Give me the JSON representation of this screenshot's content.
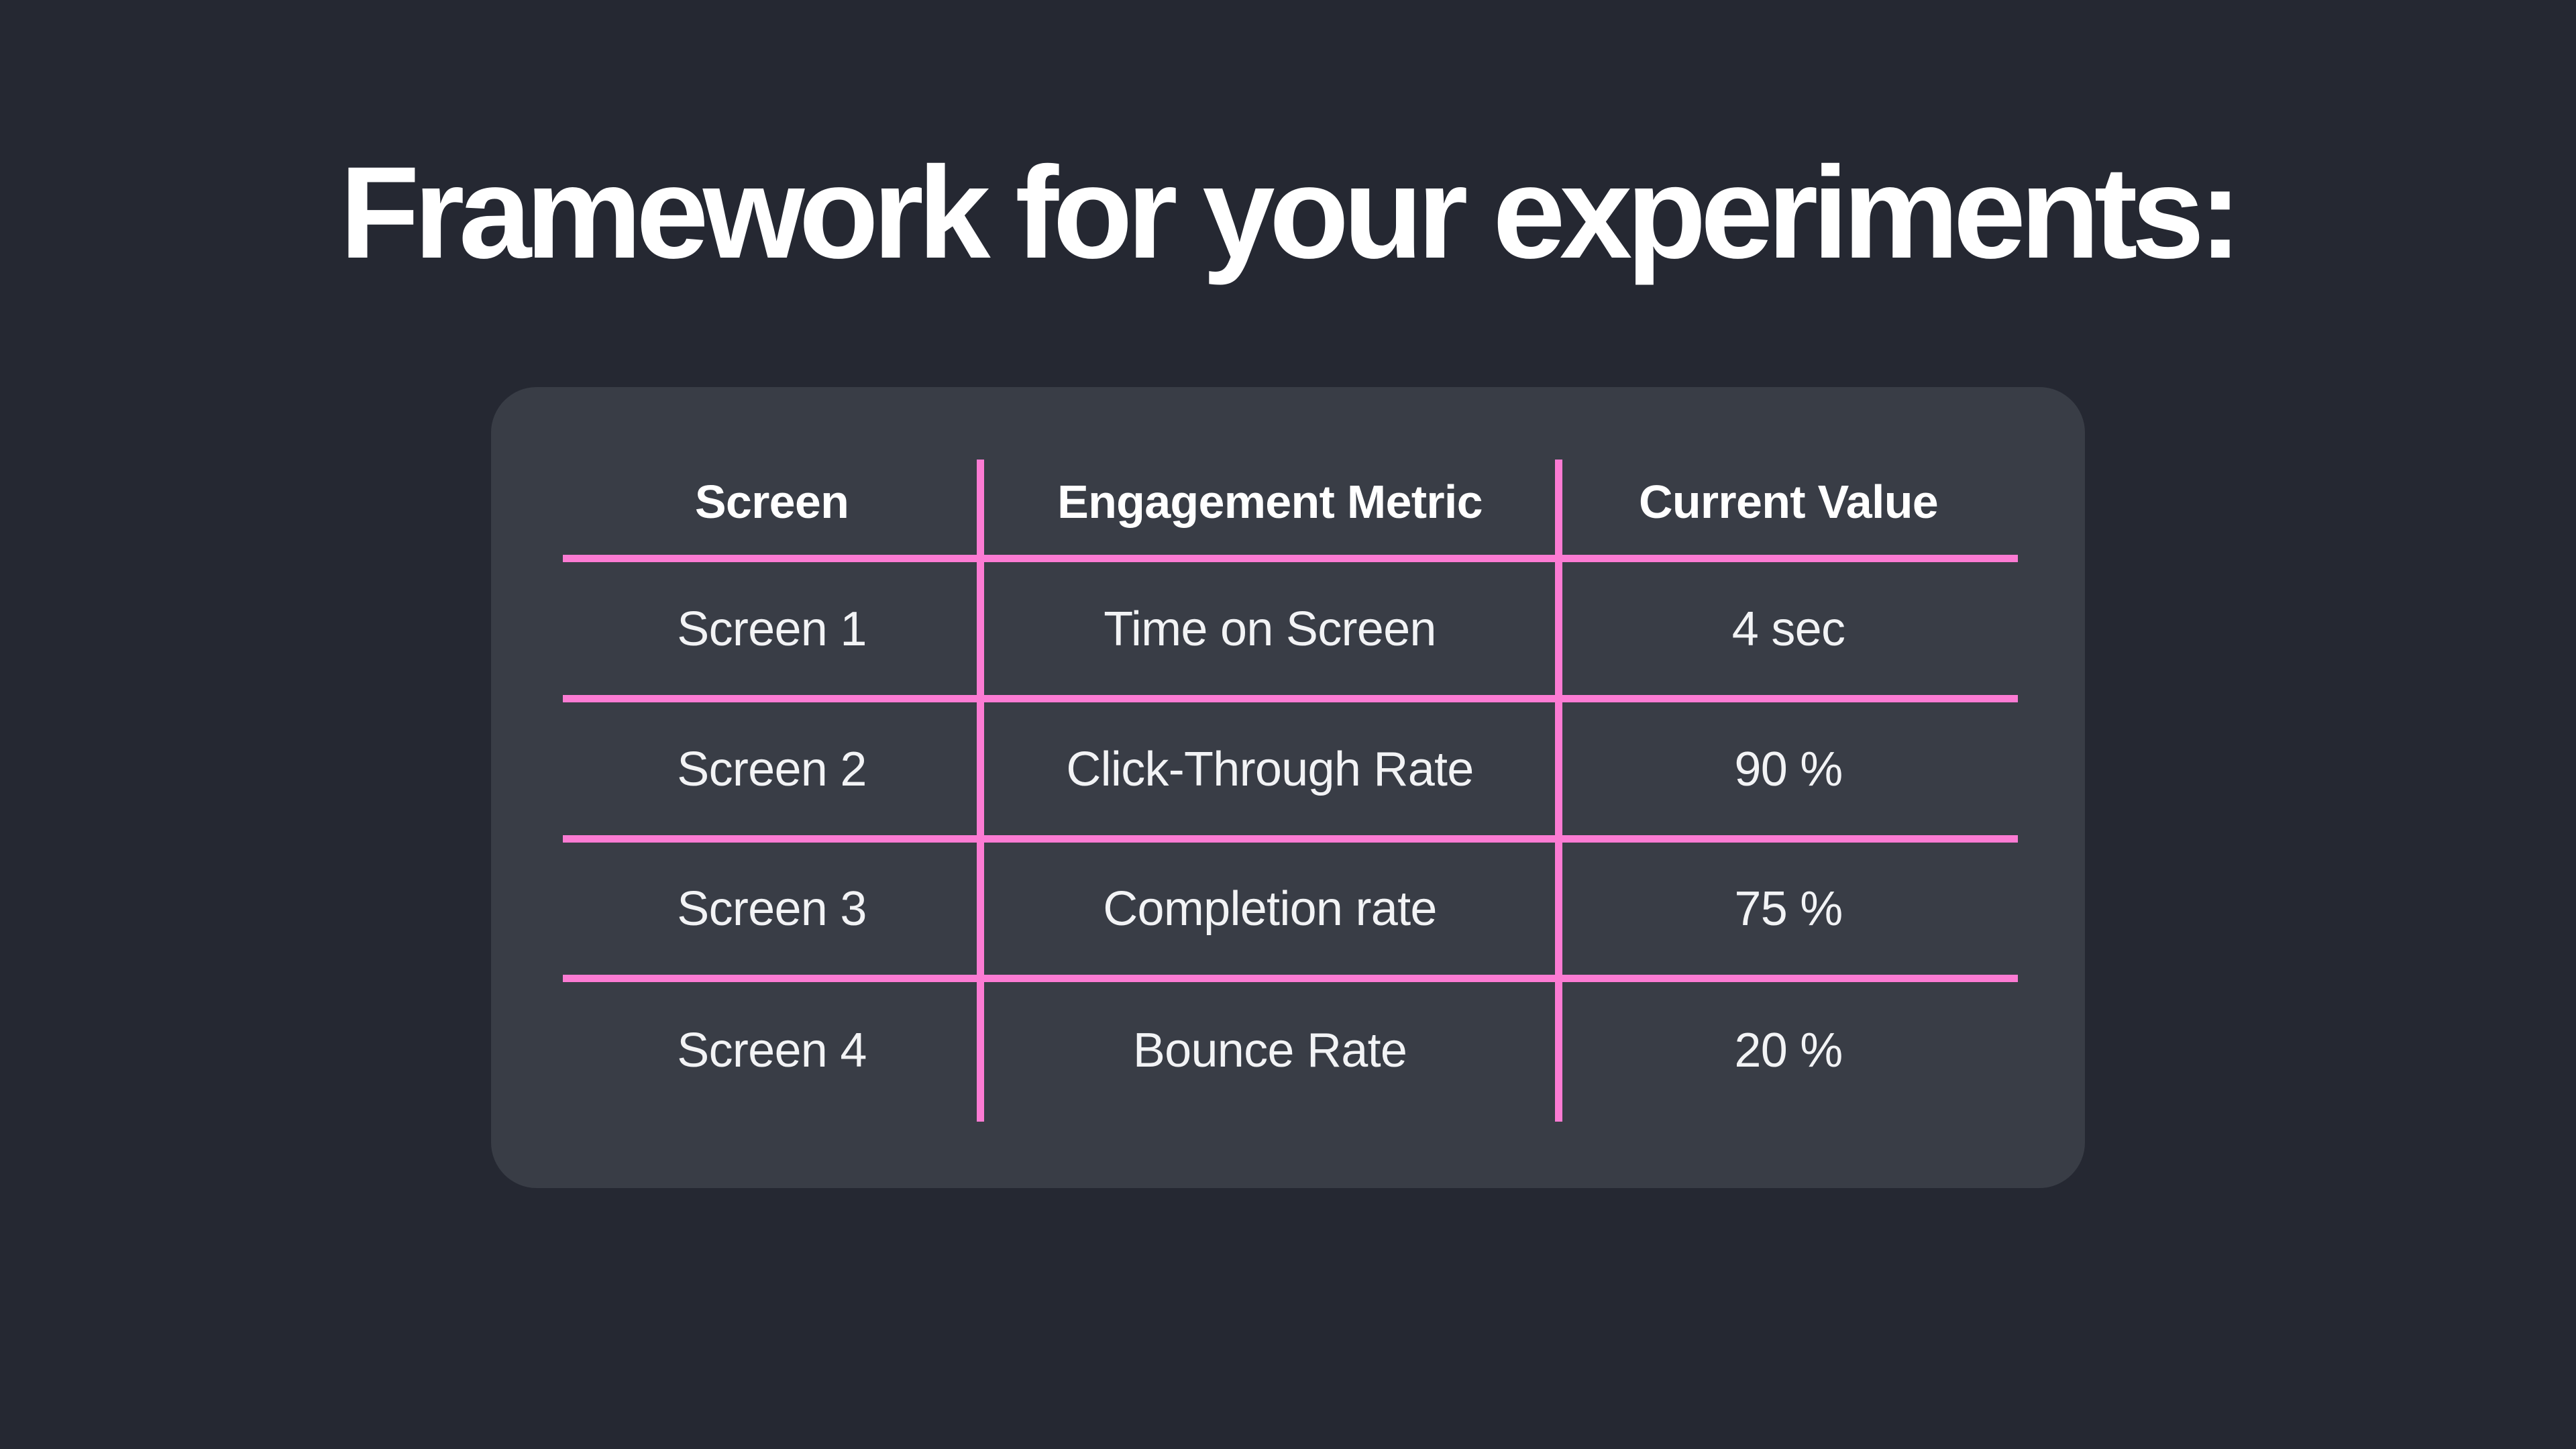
{
  "slide": {
    "title": "Framework for your experiments:"
  },
  "table": {
    "headers": [
      "Screen",
      "Engagement Metric",
      "Current Value"
    ],
    "rows": [
      [
        "Screen 1",
        "Time on Screen",
        "4 sec"
      ],
      [
        "Screen 2",
        "Click-Through Rate",
        "90 %"
      ],
      [
        "Screen 3",
        "Completion rate",
        "75 %"
      ],
      [
        "Screen 4",
        "Bounce Rate",
        "20 %"
      ]
    ]
  },
  "colors": {
    "page_bg": "#252832",
    "card_bg": "#393D46",
    "accent_pink": "#FC7BD3",
    "title_color": "#FFFFFF",
    "body_text": "#F2F3F5"
  }
}
